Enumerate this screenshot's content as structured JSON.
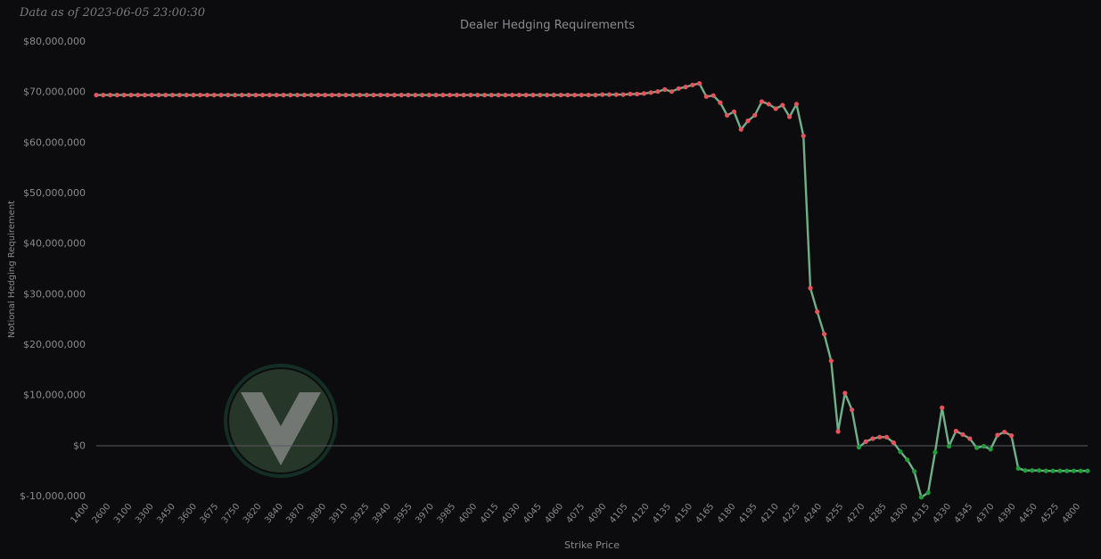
{
  "header": {
    "as_of": "Data as of 2023-06-05 23:00:30"
  },
  "chart_data": {
    "type": "line",
    "title": "Dealer Hedging Requirements",
    "xlabel": "Strike Price",
    "ylabel": "Notional Hedging Requirement",
    "ylim": [
      -10000000,
      80000000
    ],
    "y_ticks": [
      80000000,
      70000000,
      60000000,
      50000000,
      40000000,
      30000000,
      20000000,
      10000000,
      0,
      -10000000
    ],
    "y_tick_labels": [
      "$80,000,000",
      "$70,000,000",
      "$60,000,000",
      "$50,000,000",
      "$40,000,000",
      "$30,000,000",
      "$20,000,000",
      "$10,000,000",
      "$0",
      "$-10,000,000"
    ],
    "x_tick_labels": [
      "1400",
      "2600",
      "3100",
      "3300",
      "3450",
      "3600",
      "3675",
      "3750",
      "3820",
      "3840",
      "3870",
      "3890",
      "3910",
      "3925",
      "3940",
      "3955",
      "3970",
      "3985",
      "4000",
      "4015",
      "4030",
      "4045",
      "4060",
      "4075",
      "4090",
      "4105",
      "4120",
      "4135",
      "4150",
      "4165",
      "4180",
      "4195",
      "4210",
      "4225",
      "4240",
      "4255",
      "4270",
      "4285",
      "4300",
      "4315",
      "4330",
      "4345",
      "4370",
      "4390",
      "4450",
      "4525",
      "4800"
    ],
    "grid": false,
    "legend": "none",
    "colors": {
      "background": "#0c0c0e",
      "line": "#6fb08a",
      "positive_marker": "#e8525c",
      "negative_marker": "#1f9e3a",
      "axis_text": "#8a8a8e",
      "zero_line": "#5a5a5e"
    },
    "series": [
      {
        "values": [
          69300000,
          69300000,
          69300000,
          69300000,
          69300000,
          69300000,
          69300000,
          69300000,
          69300000,
          69300000,
          69300000,
          69300000,
          69300000,
          69300000,
          69300000,
          69300000,
          69300000,
          69300000,
          69300000,
          69300000,
          69300000,
          69300000,
          69300000,
          69300000,
          69300000,
          69300000,
          69300000,
          69300000,
          69300000,
          69300000,
          69300000,
          69300000,
          69300000,
          69300000,
          69300000,
          69300000,
          69300000,
          69300000,
          69300000,
          69300000,
          69300000,
          69300000,
          69300000,
          69300000,
          69300000,
          69300000,
          69300000,
          69300000,
          69300000,
          69300000,
          69300000,
          69300000,
          69300000,
          69300000,
          69300000,
          69300000,
          69300000,
          69300000,
          69300000,
          69300000,
          69300000,
          69300000,
          69300000,
          69300000,
          69300000,
          69300000,
          69300000,
          69300000,
          69300000,
          69300000,
          69300000,
          69300000,
          69300000,
          69400000,
          69400000,
          69400000,
          69400000,
          69500000,
          69500000,
          69600000,
          69800000,
          70000000,
          70400000,
          70000000,
          70600000,
          70900000,
          71300000,
          71600000,
          69000000,
          69200000,
          67800000,
          65300000,
          66000000,
          62500000,
          64200000,
          65300000,
          68000000,
          67500000,
          66600000,
          67300000,
          65000000,
          67500000,
          61200000,
          31100000,
          26400000,
          22000000,
          16700000,
          2700000,
          10300000,
          7000000,
          -400000,
          700000,
          1300000,
          1600000,
          1600000,
          500000,
          -1300000,
          -2900000,
          -5200000,
          -10300000,
          -9400000,
          -1400000,
          7400000,
          -200000,
          2800000,
          2100000,
          1300000,
          -500000,
          -200000,
          -800000,
          2000000,
          2600000,
          1900000,
          -4600000,
          -5000000,
          -5000000,
          -5000000,
          -5100000,
          -5100000,
          -5100000,
          -5100000,
          -5100000,
          -5100000,
          -5100000
        ]
      }
    ]
  }
}
